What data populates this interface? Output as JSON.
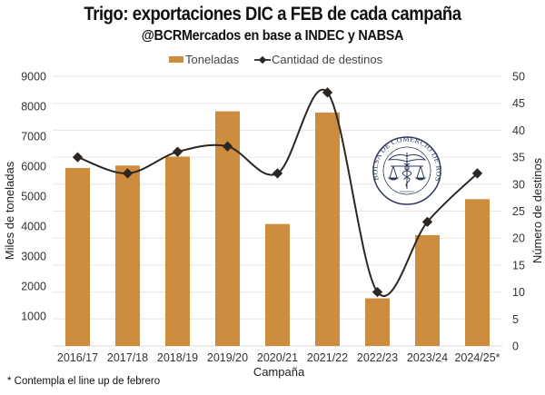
{
  "chart_data": {
    "type": "bar",
    "title": "Trigo: exportaciones DIC a FEB de cada campaña",
    "subtitle": "@BCRMercados en base a INDEC y NABSA",
    "xlabel": "Campaña",
    "ylabel": "Miles de toneladas",
    "y2label": "Número de destinos",
    "categories": [
      "2016/17",
      "2017/18",
      "2018/19",
      "2019/20",
      "2020/21",
      "2021/22",
      "2022/23",
      "2023/24",
      "2024/25*"
    ],
    "series": [
      {
        "name": "Toneladas",
        "type": "bar",
        "axis": "left",
        "color": "#CE8D3E",
        "values": [
          5940,
          6020,
          6320,
          7830,
          4070,
          7790,
          1590,
          3700,
          4900
        ]
      },
      {
        "name": "Cantidad de destinos",
        "type": "line",
        "axis": "right",
        "color": "#2B2622",
        "values": [
          35,
          32,
          36,
          37,
          32,
          47,
          10,
          23,
          32
        ]
      }
    ],
    "ylim": [
      0,
      9000
    ],
    "yticks": [
      1000,
      2000,
      3000,
      4000,
      5000,
      6000,
      7000,
      8000,
      9000
    ],
    "y2lim": [
      0,
      50
    ],
    "y2ticks": [
      0,
      5,
      10,
      15,
      20,
      25,
      30,
      35,
      40,
      45,
      50
    ],
    "grid": true,
    "legend_position": "top-center",
    "footnote": "* Contempla el line up de febrero"
  },
  "logo": {
    "ring_text": "BOLSA DE COMERCIO DE ROSARIO",
    "color": "#2E3A5C"
  }
}
